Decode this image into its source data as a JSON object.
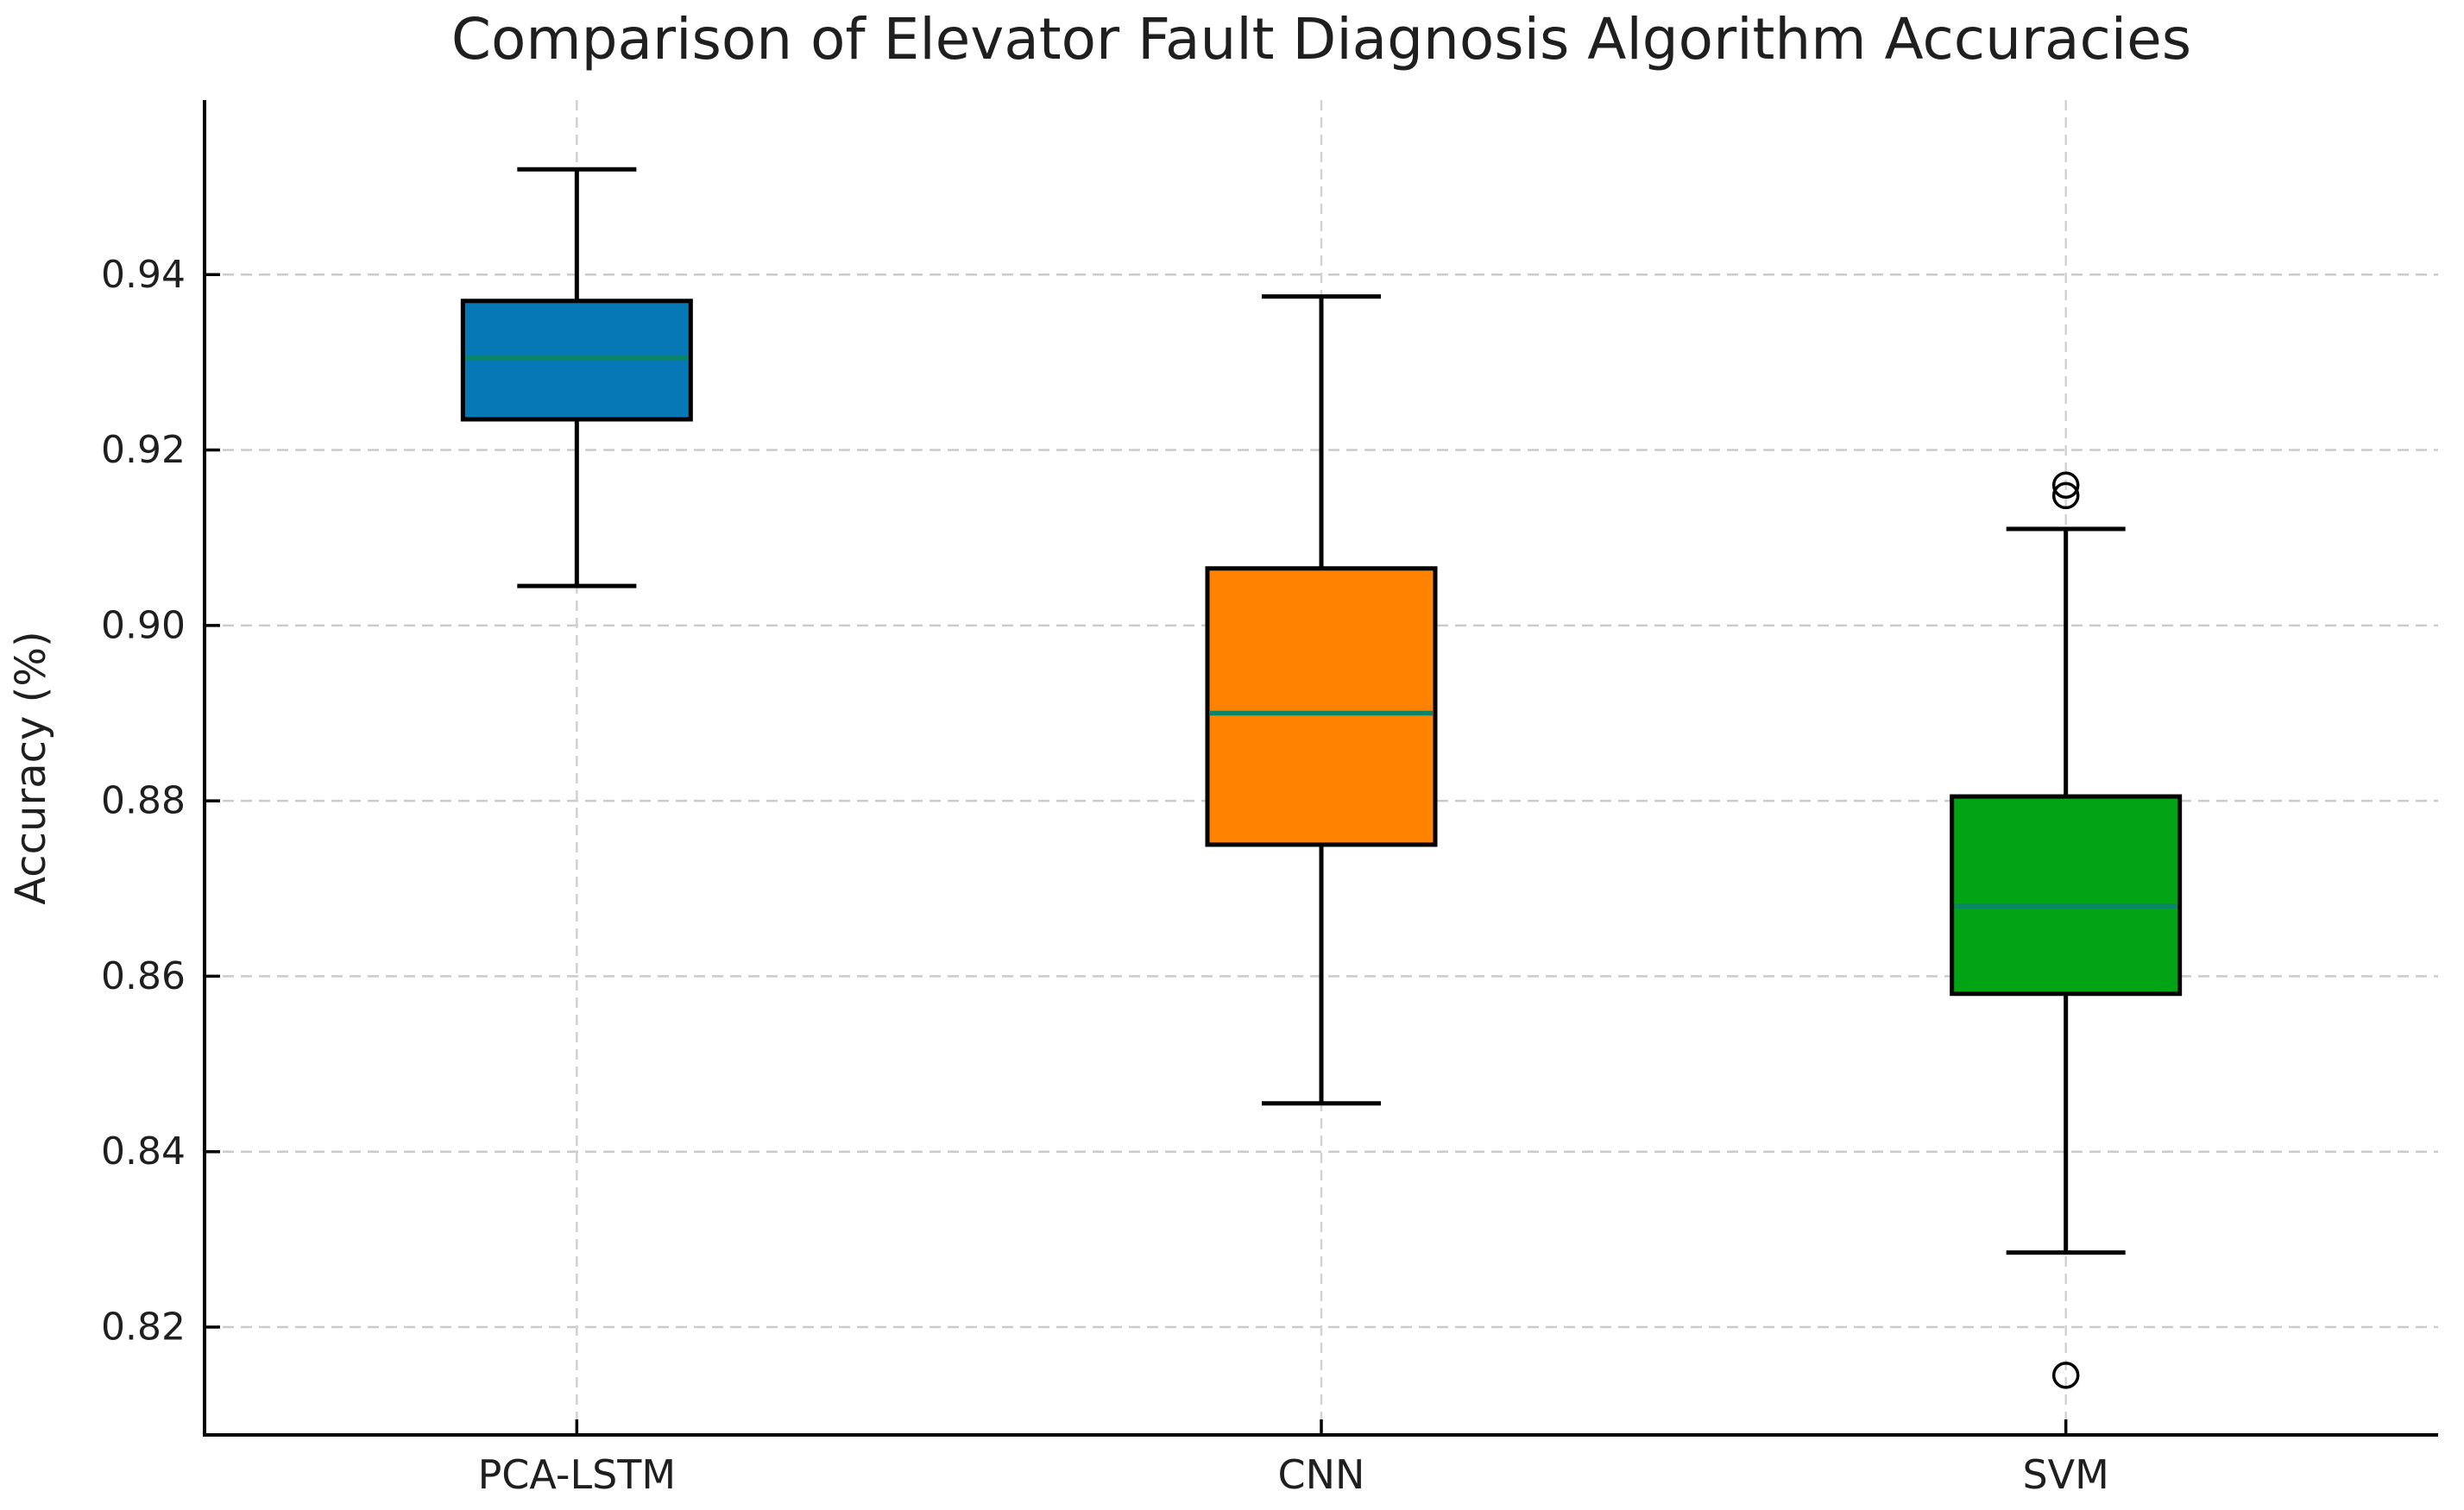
{
  "chart_data": {
    "type": "boxplot",
    "title": "Comparison of Elevator Fault Diagnosis Algorithm Accuracies",
    "xlabel": "",
    "ylabel": "Accuracy (%)",
    "categories": [
      "PCA-LSTM",
      "CNN",
      "SVM"
    ],
    "ylim": [
      0.8077,
      0.9599
    ],
    "y_ticks": [
      0.82,
      0.84,
      0.86,
      0.88,
      0.9,
      0.92,
      0.94
    ],
    "y_tick_labels": [
      "0.82",
      "0.84",
      "0.86",
      "0.88",
      "0.90",
      "0.92",
      "0.94"
    ],
    "grid": {
      "horizontal": true,
      "vertical": true,
      "style": "dashed",
      "drawn_below_data": true
    },
    "legend": "none",
    "series": [
      {
        "name": "PCA-LSTM",
        "box_color": "#0678B6",
        "whisker_low": 0.9045,
        "q1": 0.9235,
        "median": 0.9305,
        "q3": 0.937,
        "whisker_high": 0.952,
        "fliers": []
      },
      {
        "name": "CNN",
        "box_color": "#FF8200",
        "whisker_low": 0.8455,
        "q1": 0.875,
        "median": 0.89,
        "q3": 0.9065,
        "whisker_high": 0.9375,
        "fliers": []
      },
      {
        "name": "SVM",
        "box_color": "#02A314",
        "whisker_low": 0.8285,
        "q1": 0.858,
        "median": 0.868,
        "q3": 0.8805,
        "whisker_high": 0.911,
        "fliers": [
          0.916,
          0.9148,
          0.8145
        ]
      }
    ],
    "colors": {
      "median_line": "#0A8568",
      "box_edge": "#000000",
      "whisker": "#000000",
      "flier_edge": "#000000",
      "gridline": "#CBCBCB",
      "spine": "#000000",
      "text": "#1F1F1F",
      "background": "#FFFFFF"
    }
  }
}
